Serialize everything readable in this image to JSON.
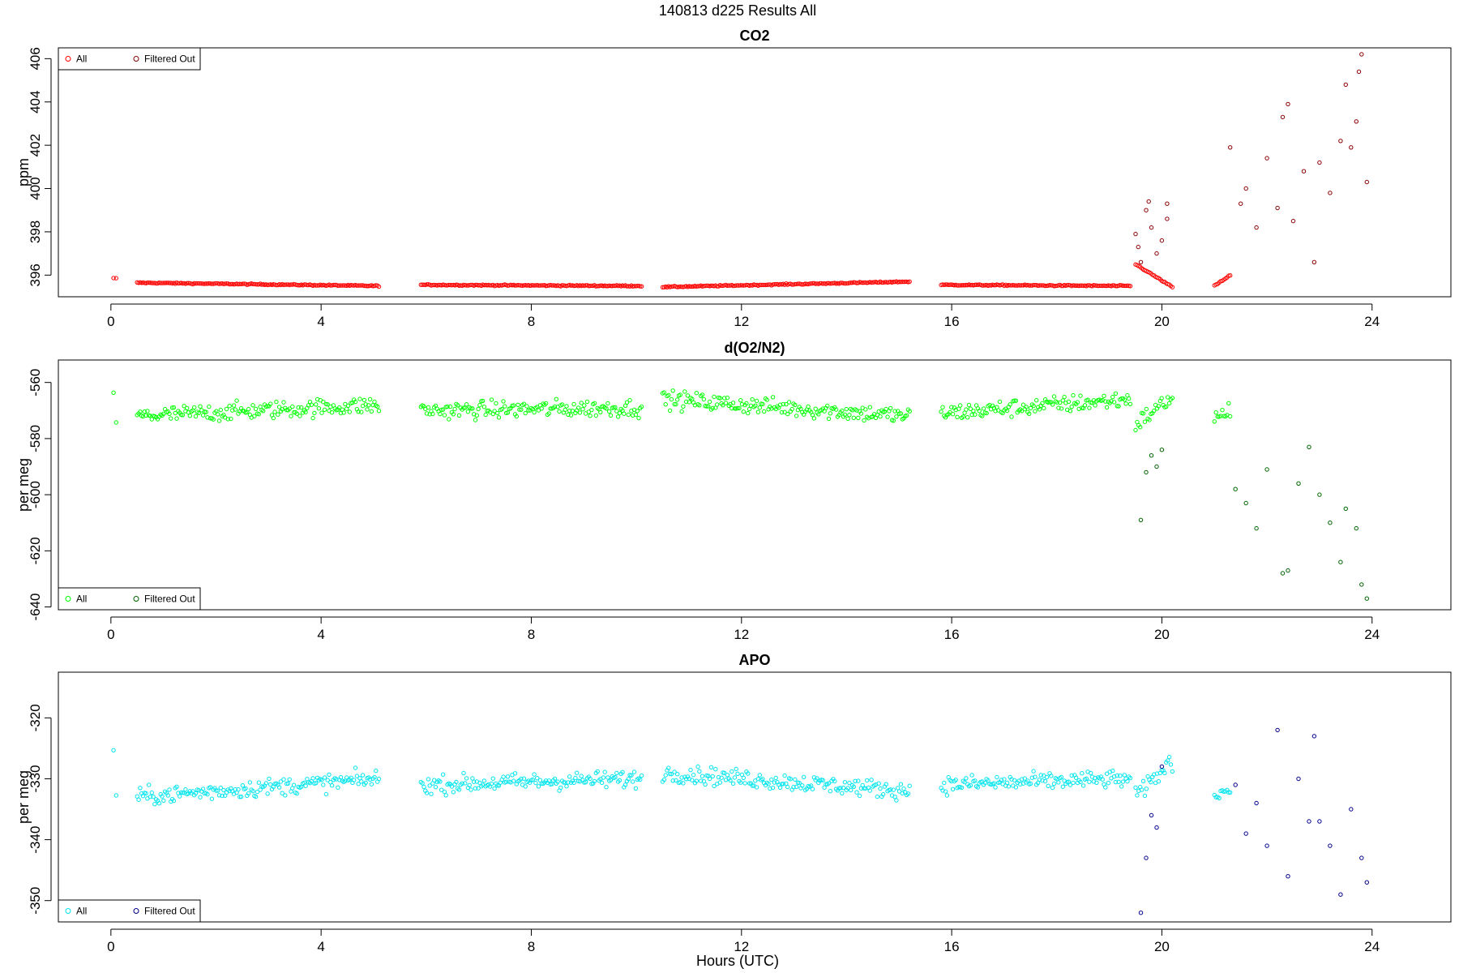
{
  "supertitle": "140813   d225   Results All",
  "x_axis_label": "Hours (UTC)",
  "chart_data": [
    {
      "type": "scatter",
      "title": "CO2",
      "ylabel": "ppm",
      "xlim": [
        -1.0,
        25.5
      ],
      "ylim": [
        395.0,
        406.5
      ],
      "x_ticks": [
        0,
        4,
        8,
        12,
        16,
        20,
        24
      ],
      "y_ticks": [
        396,
        398,
        400,
        402,
        404,
        406
      ],
      "legend": {
        "placement": "top-left",
        "entries": [
          "All",
          "Filtered Out"
        ]
      },
      "colors": {
        "all": "#ff0000",
        "filtered": "#8b0000"
      },
      "series": [
        {
          "name": "All",
          "segments": [
            {
              "x": [
                0.05,
                0.1
              ],
              "y": [
                395.85,
                395.85
              ]
            },
            {
              "x": [
                0.5,
                5.1
              ],
              "y": [
                395.65,
                395.5
              ]
            },
            {
              "x": [
                5.9,
                10.1
              ],
              "y": [
                395.55,
                395.5
              ]
            },
            {
              "x": [
                10.5,
                15.2
              ],
              "y": [
                395.45,
                395.7
              ]
            },
            {
              "x": [
                15.8,
                19.4
              ],
              "y": [
                395.55,
                395.5
              ]
            },
            {
              "x": [
                19.5,
                20.2
              ],
              "y": [
                396.5,
                395.45
              ]
            },
            {
              "x": [
                21.0,
                21.3
              ],
              "y": [
                395.5,
                396.0
              ]
            }
          ]
        },
        {
          "name": "Filtered Out",
          "points": [
            [
              19.5,
              397.9
            ],
            [
              19.55,
              397.3
            ],
            [
              19.6,
              396.6
            ],
            [
              19.7,
              399.0
            ],
            [
              19.75,
              399.4
            ],
            [
              19.8,
              398.2
            ],
            [
              19.9,
              397.0
            ],
            [
              20.0,
              397.6
            ],
            [
              20.1,
              399.3
            ],
            [
              20.1,
              398.6
            ],
            [
              21.3,
              401.9
            ],
            [
              21.5,
              399.3
            ],
            [
              21.6,
              400.0
            ],
            [
              21.8,
              398.2
            ],
            [
              22.0,
              401.4
            ],
            [
              22.2,
              399.1
            ],
            [
              22.3,
              403.3
            ],
            [
              22.4,
              403.9
            ],
            [
              22.5,
              398.5
            ],
            [
              22.7,
              400.8
            ],
            [
              22.9,
              396.6
            ],
            [
              23.0,
              401.2
            ],
            [
              23.2,
              399.8
            ],
            [
              23.4,
              402.2
            ],
            [
              23.5,
              404.8
            ],
            [
              23.6,
              401.9
            ],
            [
              23.7,
              403.1
            ],
            [
              23.75,
              405.4
            ],
            [
              23.8,
              406.2
            ],
            [
              23.9,
              400.3
            ]
          ]
        }
      ]
    },
    {
      "type": "scatter",
      "title": "d(O2/N2)",
      "ylabel": "per meg",
      "xlim": [
        -1.0,
        25.5
      ],
      "ylim": [
        -641.0,
        -552.0
      ],
      "x_ticks": [
        0,
        4,
        8,
        12,
        16,
        20,
        24
      ],
      "y_ticks": [
        -640,
        -620,
        -600,
        -580,
        -560
      ],
      "legend": {
        "placement": "bottom-left",
        "entries": [
          "All",
          "Filtered Out"
        ]
      },
      "colors": {
        "all": "#00ff00",
        "filtered": "#006400"
      },
      "series": [
        {
          "name": "All",
          "segments": [
            {
              "x": [
                0.05,
                0.1
              ],
              "y": [
                -566.0,
                -574.0
              ]
            },
            {
              "x": [
                0.5,
                5.1
              ],
              "y": [
                -572.0,
                -568.0
              ]
            },
            {
              "x": [
                5.9,
                10.1
              ],
              "y": [
                -570.0,
                -569.0
              ]
            },
            {
              "x": [
                10.5,
                15.2
              ],
              "y": [
                -566.0,
                -572.0
              ]
            },
            {
              "x": [
                15.8,
                19.4
              ],
              "y": [
                -571.0,
                -566.0
              ]
            },
            {
              "x": [
                19.5,
                20.2
              ],
              "y": [
                -575.0,
                -565.0
              ]
            },
            {
              "x": [
                21.0,
                21.3
              ],
              "y": [
                -573.0,
                -570.0
              ]
            }
          ]
        },
        {
          "name": "Filtered Out",
          "points": [
            [
              19.6,
              -609.0
            ],
            [
              19.7,
              -592.0
            ],
            [
              19.8,
              -586.0
            ],
            [
              19.9,
              -590.0
            ],
            [
              20.0,
              -584.0
            ],
            [
              21.4,
              -598.0
            ],
            [
              21.6,
              -603.0
            ],
            [
              21.8,
              -612.0
            ],
            [
              22.0,
              -591.0
            ],
            [
              22.3,
              -628.0
            ],
            [
              22.4,
              -627.0
            ],
            [
              22.6,
              -596.0
            ],
            [
              22.8,
              -583.0
            ],
            [
              23.0,
              -600.0
            ],
            [
              23.2,
              -610.0
            ],
            [
              23.4,
              -624.0
            ],
            [
              23.5,
              -605.0
            ],
            [
              23.7,
              -612.0
            ],
            [
              23.8,
              -632.0
            ],
            [
              23.9,
              -637.0
            ]
          ]
        }
      ]
    },
    {
      "type": "scatter",
      "title": "APO",
      "ylabel": "per meg",
      "xlim": [
        -1.0,
        25.5
      ],
      "ylim": [
        -353.5,
        -312.5
      ],
      "x_ticks": [
        0,
        4,
        8,
        12,
        16,
        20,
        24
      ],
      "y_ticks": [
        -350,
        -340,
        -330,
        -320
      ],
      "legend": {
        "placement": "bottom-left",
        "entries": [
          "All",
          "Filtered Out"
        ]
      },
      "colors": {
        "all": "#00e5ee",
        "filtered": "#00008b"
      },
      "series": [
        {
          "name": "All",
          "segments": [
            {
              "x": [
                0.05,
                0.1
              ],
              "y": [
                -325.0,
                -333.0
              ]
            },
            {
              "x": [
                0.5,
                5.1
              ],
              "y": [
                -333.0,
                -330.0
              ]
            },
            {
              "x": [
                5.9,
                10.1
              ],
              "y": [
                -331.0,
                -330.0
              ]
            },
            {
              "x": [
                10.5,
                15.2
              ],
              "y": [
                -329.0,
                -332.0
              ]
            },
            {
              "x": [
                15.8,
                19.4
              ],
              "y": [
                -331.0,
                -330.0
              ]
            },
            {
              "x": [
                19.5,
                20.2
              ],
              "y": [
                -333.0,
                -327.0
              ]
            },
            {
              "x": [
                21.0,
                21.3
              ],
              "y": [
                -333.0,
                -331.0
              ]
            }
          ]
        },
        {
          "name": "Filtered Out",
          "points": [
            [
              19.6,
              -352.0
            ],
            [
              19.7,
              -343.0
            ],
            [
              19.8,
              -336.0
            ],
            [
              19.9,
              -338.0
            ],
            [
              20.0,
              -328.0
            ],
            [
              21.4,
              -331.0
            ],
            [
              21.6,
              -339.0
            ],
            [
              21.8,
              -334.0
            ],
            [
              22.0,
              -341.0
            ],
            [
              22.2,
              -322.0
            ],
            [
              22.4,
              -346.0
            ],
            [
              22.6,
              -330.0
            ],
            [
              22.8,
              -337.0
            ],
            [
              22.9,
              -323.0
            ],
            [
              23.0,
              -337.0
            ],
            [
              23.2,
              -341.0
            ],
            [
              23.4,
              -349.0
            ],
            [
              23.6,
              -335.0
            ],
            [
              23.8,
              -343.0
            ],
            [
              23.9,
              -347.0
            ]
          ]
        }
      ]
    }
  ]
}
